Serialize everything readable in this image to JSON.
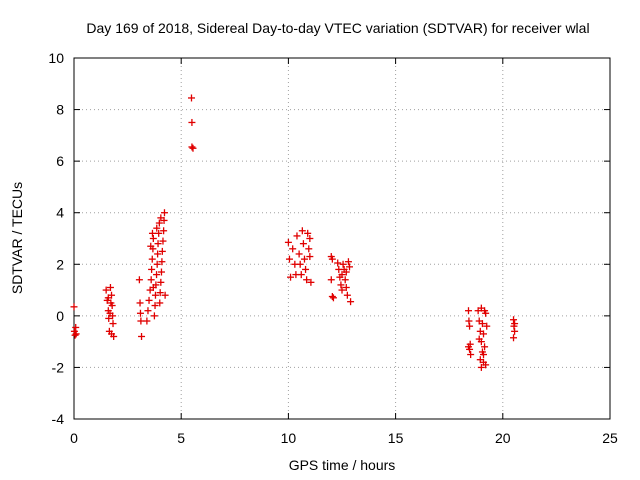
{
  "chart_data": {
    "type": "scatter",
    "title": "Day 169 of 2018, Sidereal Day-to-day VTEC variation (SDTVAR) for receiver wlal",
    "xlabel": "GPS time / hours",
    "ylabel": "SDTVAR / TECUs",
    "xlim": [
      0,
      25
    ],
    "ylim": [
      -4,
      10
    ],
    "xticks": [
      0,
      5,
      10,
      15,
      20,
      25
    ],
    "yticks": [
      -4,
      -2,
      0,
      2,
      4,
      6,
      8,
      10
    ],
    "xtick_labels": [
      "0",
      "5",
      "10",
      "15",
      "20",
      "25"
    ],
    "ytick_labels": [
      "-4",
      "-2",
      "0",
      "2",
      "4",
      "6",
      "8",
      "10"
    ],
    "grid": true,
    "marker": "+",
    "point_color": "#e00000",
    "series": [
      {
        "name": "SDTVAR",
        "points": [
          [
            0.0,
            0.35
          ],
          [
            0.02,
            -0.6
          ],
          [
            0.05,
            -0.75
          ],
          [
            0.08,
            -0.45
          ],
          [
            0.1,
            -0.7
          ],
          [
            1.5,
            1.0
          ],
          [
            1.55,
            0.6
          ],
          [
            1.6,
            0.2
          ],
          [
            1.62,
            -0.1
          ],
          [
            1.65,
            -0.6
          ],
          [
            1.7,
            1.1
          ],
          [
            1.75,
            0.8
          ],
          [
            1.78,
            0.4
          ],
          [
            1.8,
            0.0
          ],
          [
            1.82,
            -0.3
          ],
          [
            1.85,
            -0.8
          ],
          [
            1.72,
            0.5
          ],
          [
            1.68,
            0.1
          ],
          [
            1.6,
            0.7
          ],
          [
            1.75,
            -0.7
          ],
          [
            3.05,
            1.4
          ],
          [
            3.08,
            0.5
          ],
          [
            3.1,
            0.1
          ],
          [
            3.12,
            -0.2
          ],
          [
            3.15,
            -0.8
          ],
          [
            3.4,
            -0.2
          ],
          [
            3.45,
            0.2
          ],
          [
            3.5,
            0.6
          ],
          [
            3.55,
            1.0
          ],
          [
            3.6,
            1.4
          ],
          [
            3.62,
            1.8
          ],
          [
            3.65,
            2.2
          ],
          [
            3.68,
            2.6
          ],
          [
            3.7,
            3.0
          ],
          [
            3.75,
            0.0
          ],
          [
            3.78,
            0.4
          ],
          [
            3.8,
            0.8
          ],
          [
            3.82,
            1.2
          ],
          [
            3.85,
            1.6
          ],
          [
            3.88,
            2.0
          ],
          [
            3.9,
            2.4
          ],
          [
            3.92,
            2.8
          ],
          [
            3.95,
            3.2
          ],
          [
            3.98,
            3.6
          ],
          [
            4.0,
            0.5
          ],
          [
            4.02,
            0.9
          ],
          [
            4.05,
            1.3
          ],
          [
            4.08,
            1.7
          ],
          [
            4.1,
            2.1
          ],
          [
            4.12,
            2.5
          ],
          [
            4.15,
            2.9
          ],
          [
            4.18,
            3.3
          ],
          [
            4.2,
            3.7
          ],
          [
            4.22,
            4.0
          ],
          [
            4.25,
            0.8
          ],
          [
            3.58,
            2.7
          ],
          [
            3.66,
            3.2
          ],
          [
            3.86,
            3.4
          ],
          [
            4.05,
            3.8
          ],
          [
            3.7,
            1.1
          ],
          [
            5.48,
            8.45
          ],
          [
            5.5,
            7.5
          ],
          [
            5.5,
            6.55
          ],
          [
            5.55,
            6.5
          ],
          [
            10.0,
            2.85
          ],
          [
            10.05,
            2.2
          ],
          [
            10.1,
            1.5
          ],
          [
            10.2,
            2.6
          ],
          [
            10.3,
            2.0
          ],
          [
            10.35,
            1.6
          ],
          [
            10.4,
            3.1
          ],
          [
            10.5,
            2.4
          ],
          [
            10.55,
            2.0
          ],
          [
            10.6,
            1.6
          ],
          [
            10.65,
            3.3
          ],
          [
            10.7,
            2.8
          ],
          [
            10.75,
            2.2
          ],
          [
            10.8,
            1.8
          ],
          [
            10.85,
            1.4
          ],
          [
            10.9,
            3.2
          ],
          [
            11.0,
            3.0
          ],
          [
            11.05,
            1.3
          ],
          [
            10.95,
            2.6
          ],
          [
            11.0,
            2.3
          ],
          [
            12.0,
            2.3
          ],
          [
            12.05,
            2.2
          ],
          [
            12.0,
            1.4
          ],
          [
            12.05,
            0.75
          ],
          [
            12.1,
            0.7
          ],
          [
            12.3,
            2.05
          ],
          [
            12.35,
            1.8
          ],
          [
            12.4,
            1.5
          ],
          [
            12.45,
            1.2
          ],
          [
            12.5,
            1.0
          ],
          [
            12.55,
            2.0
          ],
          [
            12.6,
            1.8
          ],
          [
            12.65,
            1.4
          ],
          [
            12.7,
            1.1
          ],
          [
            12.75,
            0.8
          ],
          [
            12.8,
            2.1
          ],
          [
            12.85,
            1.9
          ],
          [
            12.9,
            0.55
          ],
          [
            12.5,
            1.6
          ],
          [
            12.7,
            1.7
          ],
          [
            18.4,
            0.2
          ],
          [
            18.42,
            -0.2
          ],
          [
            18.45,
            -0.4
          ],
          [
            18.4,
            -1.2
          ],
          [
            18.45,
            -1.3
          ],
          [
            18.5,
            -1.5
          ],
          [
            18.48,
            -1.1
          ],
          [
            18.85,
            0.2
          ],
          [
            18.9,
            -0.2
          ],
          [
            18.95,
            -0.6
          ],
          [
            19.0,
            -1.0
          ],
          [
            19.05,
            -1.4
          ],
          [
            19.1,
            -1.8
          ],
          [
            19.0,
            0.3
          ],
          [
            19.05,
            -0.3
          ],
          [
            19.1,
            -0.7
          ],
          [
            19.15,
            -1.2
          ],
          [
            19.2,
            -1.9
          ],
          [
            19.2,
            0.1
          ],
          [
            19.25,
            -0.4
          ],
          [
            18.95,
            -1.7
          ],
          [
            19.0,
            -2.0
          ],
          [
            19.1,
            -1.5
          ],
          [
            19.15,
            0.2
          ],
          [
            18.9,
            -0.9
          ],
          [
            20.5,
            -0.15
          ],
          [
            20.52,
            -0.4
          ],
          [
            20.55,
            -0.6
          ],
          [
            20.5,
            -0.85
          ],
          [
            20.55,
            -0.3
          ]
        ]
      }
    ]
  }
}
